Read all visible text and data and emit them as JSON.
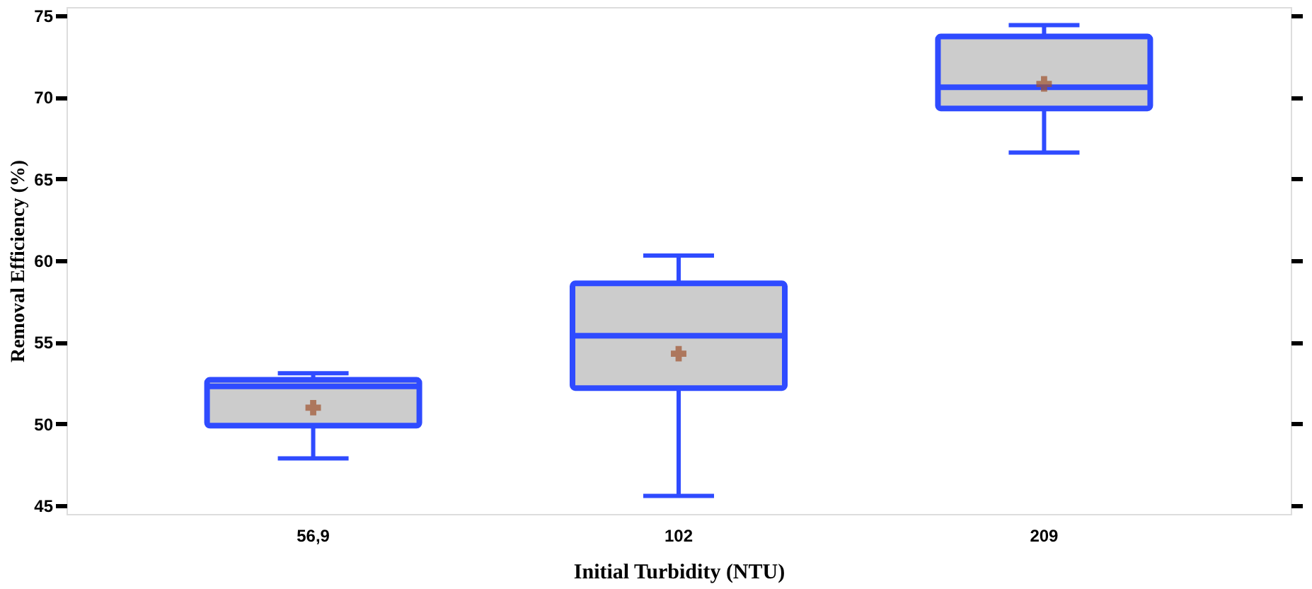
{
  "chart_data": {
    "type": "box",
    "xlabel": "Initial Turbidity (NTU)",
    "ylabel": "Removal Efficiency (%)",
    "categories": [
      "56,9",
      "102",
      "209"
    ],
    "series": [
      {
        "color": "#2f4bff",
        "boxes": [
          {
            "low": 47.9,
            "q1": 49.9,
            "median": 52.3,
            "q3": 52.7,
            "high": 53.1,
            "mean": 51.0
          },
          {
            "low": 45.6,
            "q1": 52.2,
            "median": 55.4,
            "q3": 58.6,
            "high": 60.3,
            "mean": 54.3
          },
          {
            "low": 66.6,
            "q1": 69.3,
            "median": 70.6,
            "q3": 73.7,
            "high": 74.4,
            "mean": 70.8
          }
        ]
      }
    ],
    "ylim": [
      44.5,
      75.5
    ],
    "yticks": [
      45,
      50,
      55,
      60,
      65,
      70,
      75
    ],
    "grid": false,
    "marker": "cross"
  }
}
